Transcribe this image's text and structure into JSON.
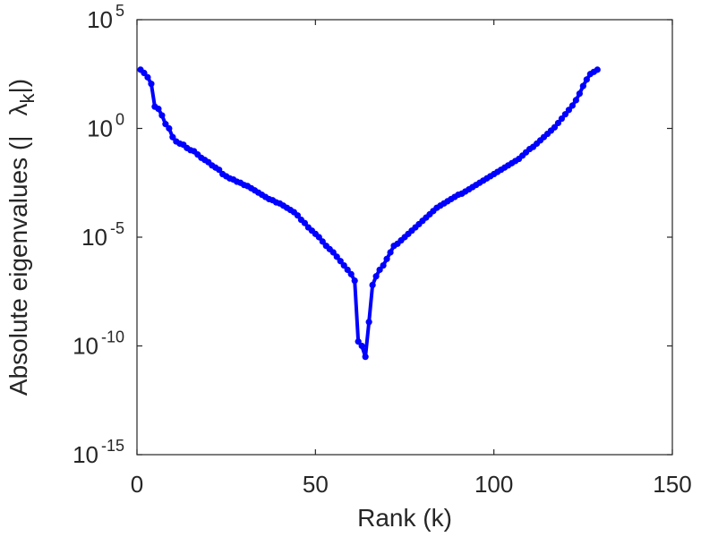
{
  "chart_data": {
    "type": "line",
    "title": "",
    "xlabel": "Rank (k)",
    "ylabel": {
      "prefix": "Absolute eigenvalues (|",
      "symbol": "λ",
      "subscript": "k",
      "suffix": "|)"
    },
    "xlim": [
      0,
      150
    ],
    "ylim_log10": [
      -15,
      5
    ],
    "y_scale": "log",
    "grid": false,
    "x_ticks": [
      {
        "value": 0,
        "label": "0"
      },
      {
        "value": 50,
        "label": "50"
      },
      {
        "value": 100,
        "label": "100"
      },
      {
        "value": 150,
        "label": "150"
      }
    ],
    "y_ticks": [
      {
        "exponent": 5,
        "base": "10",
        "exp": "5"
      },
      {
        "exponent": 0,
        "base": "10",
        "exp": "0"
      },
      {
        "exponent": -5,
        "base": "10",
        "exp": "-5"
      },
      {
        "exponent": -10,
        "base": "10",
        "exp": "-10"
      },
      {
        "exponent": -15,
        "base": "10",
        "exp": "-15"
      }
    ],
    "series": [
      {
        "color": "#0000ff",
        "marker": "circle",
        "x": [
          1,
          2,
          3,
          4,
          5,
          6,
          7,
          8,
          9,
          10,
          11,
          12,
          13,
          14,
          15,
          16,
          17,
          18,
          19,
          20,
          21,
          22,
          23,
          24,
          25,
          26,
          27,
          28,
          29,
          30,
          31,
          32,
          33,
          34,
          35,
          36,
          37,
          38,
          39,
          40,
          41,
          42,
          43,
          44,
          45,
          46,
          47,
          48,
          49,
          50,
          51,
          52,
          53,
          54,
          55,
          56,
          57,
          58,
          59,
          60,
          61,
          62,
          63,
          64,
          65,
          66,
          67,
          68,
          69,
          70,
          71,
          72,
          73,
          74,
          75,
          76,
          77,
          78,
          79,
          80,
          81,
          82,
          83,
          84,
          85,
          86,
          87,
          88,
          89,
          90,
          91,
          92,
          93,
          94,
          95,
          96,
          97,
          98,
          99,
          100,
          101,
          102,
          103,
          104,
          105,
          106,
          107,
          108,
          109,
          110,
          111,
          112,
          113,
          114,
          115,
          116,
          117,
          118,
          119,
          120,
          121,
          122,
          123,
          124,
          125,
          126,
          127,
          128,
          129
        ],
        "log10_values": [
          2.7,
          2.55,
          2.35,
          2.05,
          1.0,
          0.9,
          0.6,
          0.2,
          0.0,
          -0.4,
          -0.6,
          -0.7,
          -0.75,
          -0.9,
          -1.0,
          -1.05,
          -1.2,
          -1.35,
          -1.45,
          -1.55,
          -1.7,
          -1.8,
          -1.9,
          -2.1,
          -2.2,
          -2.3,
          -2.35,
          -2.45,
          -2.5,
          -2.6,
          -2.65,
          -2.75,
          -2.85,
          -2.95,
          -3.05,
          -3.15,
          -3.25,
          -3.3,
          -3.4,
          -3.45,
          -3.55,
          -3.65,
          -3.75,
          -3.85,
          -4.0,
          -4.2,
          -4.35,
          -4.55,
          -4.7,
          -4.85,
          -5.0,
          -5.2,
          -5.4,
          -5.55,
          -5.7,
          -5.9,
          -6.1,
          -6.3,
          -6.5,
          -6.7,
          -7.0,
          -9.8,
          -10.0,
          -10.5,
          -8.9,
          -7.2,
          -6.8,
          -6.5,
          -6.3,
          -6.0,
          -5.7,
          -5.4,
          -5.3,
          -5.15,
          -5.0,
          -4.85,
          -4.7,
          -4.55,
          -4.4,
          -4.25,
          -4.1,
          -3.95,
          -3.8,
          -3.65,
          -3.55,
          -3.45,
          -3.35,
          -3.25,
          -3.15,
          -3.05,
          -3.0,
          -2.9,
          -2.8,
          -2.7,
          -2.6,
          -2.5,
          -2.4,
          -2.3,
          -2.2,
          -2.1,
          -2.0,
          -1.9,
          -1.8,
          -1.7,
          -1.6,
          -1.5,
          -1.4,
          -1.25,
          -1.1,
          -0.95,
          -0.85,
          -0.7,
          -0.55,
          -0.4,
          -0.25,
          -0.1,
          0.05,
          0.25,
          0.45,
          0.65,
          0.85,
          1.05,
          1.3,
          1.6,
          1.95,
          2.25,
          2.5,
          2.6,
          2.7
        ]
      }
    ]
  }
}
